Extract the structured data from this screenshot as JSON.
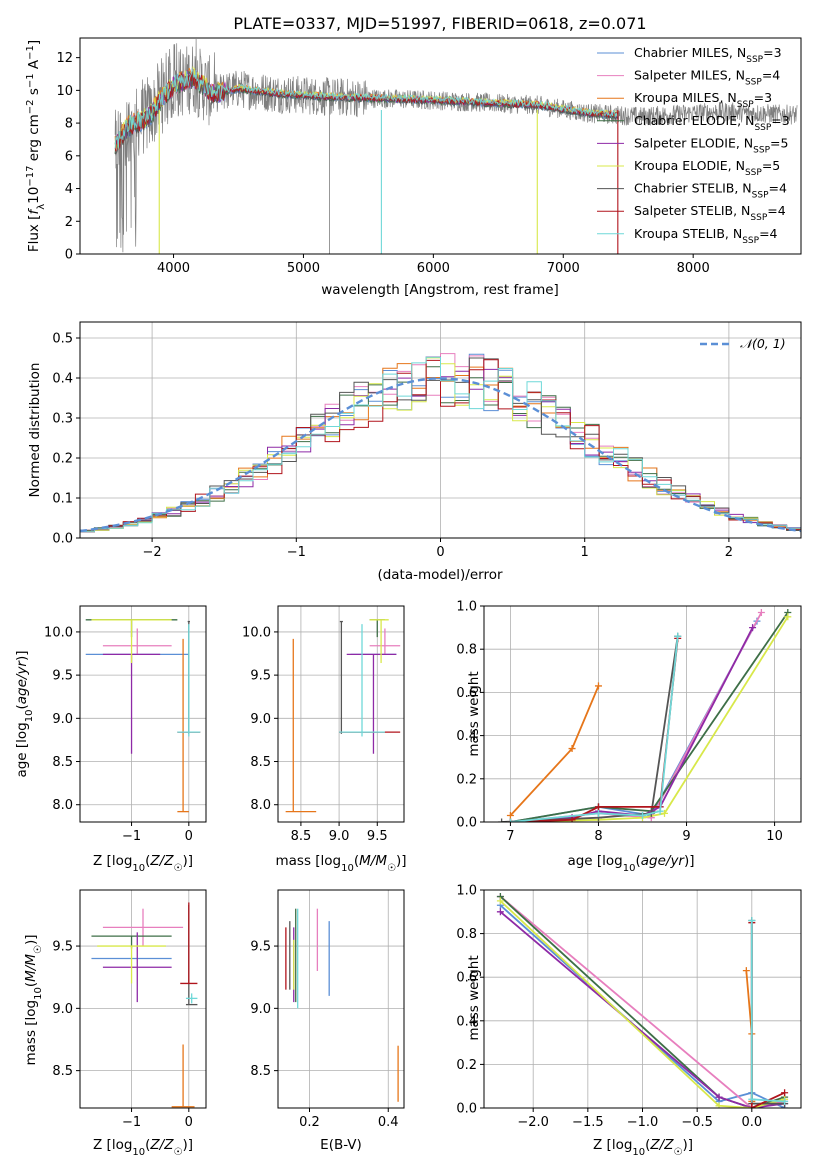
{
  "figure_title": "PLATE=0337, MJD=51997, FIBERID=0618, z=0.071",
  "colors": {
    "Chabrier MILES": "#5b8fd6",
    "Salpeter MILES": "#e77fbe",
    "Kroupa MILES": "#e6761a",
    "Chabrier ELODIE": "#3e6f47",
    "Salpeter ELODIE": "#8e2aa6",
    "Kroupa ELODIE": "#d8e84a",
    "Chabrier STELIB": "#555555",
    "Salpeter STELIB": "#b0141c",
    "Kroupa STELIB": "#6fd8d8",
    "data": "#7f7f7f",
    "normal": "#5b8fd6",
    "grid": "#b0b0b0"
  },
  "chart_data": [
    {
      "id": "spectrum",
      "type": "line",
      "xlabel": "wavelength [Angstrom, rest frame]",
      "ylabel": "Flux [f_λ 10^-17 erg cm^-2 s^-1 A^-1]",
      "xlim": [
        3280,
        8830
      ],
      "ylim": [
        0,
        13.2
      ],
      "xticks": [
        4000,
        5000,
        6000,
        7000,
        8000
      ],
      "yticks": [
        0,
        2,
        4,
        6,
        8,
        10,
        12
      ],
      "grid": false,
      "legend_position": "top-right",
      "legend": [
        {
          "label": "Chabrier MILES, N",
          "sub": "SSP",
          "suffix": "=3"
        },
        {
          "label": "Salpeter MILES, N",
          "sub": "SSP",
          "suffix": "=4"
        },
        {
          "label": "Kroupa MILES, N",
          "sub": "SSP",
          "suffix": "=3"
        },
        {
          "label": "Chabrier ELODIE, N",
          "sub": "SSP",
          "suffix": "=3"
        },
        {
          "label": "Salpeter ELODIE, N",
          "sub": "SSP",
          "suffix": "=5"
        },
        {
          "label": "Kroupa ELODIE, N",
          "sub": "SSP",
          "suffix": "=5"
        },
        {
          "label": "Chabrier STELIB, N",
          "sub": "SSP",
          "suffix": "=4"
        },
        {
          "label": "Salpeter STELIB, N",
          "sub": "SSP",
          "suffix": "=4"
        },
        {
          "label": "Kroupa STELIB, N",
          "sub": "SSP",
          "suffix": "=4"
        }
      ],
      "model_wavelength_range": [
        3550,
        7420
      ],
      "data_wavelength_range": [
        3550,
        8800
      ],
      "continuum_anchor_points": [
        [
          3550,
          6.6
        ],
        [
          3650,
          7.8
        ],
        [
          3800,
          8.3
        ],
        [
          3900,
          9.4
        ],
        [
          4000,
          10.3
        ],
        [
          4150,
          10.8
        ],
        [
          4300,
          9.8
        ],
        [
          4500,
          10.1
        ],
        [
          4800,
          9.8
        ],
        [
          5200,
          9.6
        ],
        [
          5600,
          9.5
        ],
        [
          6000,
          9.4
        ],
        [
          6500,
          9.2
        ],
        [
          6800,
          9.1
        ],
        [
          7200,
          8.6
        ],
        [
          7600,
          8.4
        ],
        [
          8200,
          8.7
        ],
        [
          8800,
          8.5
        ]
      ],
      "notable_dips": [
        [
          3890,
          0
        ],
        [
          5200,
          0
        ],
        [
          5600,
          0
        ],
        [
          6800,
          0
        ],
        [
          7420,
          0
        ]
      ]
    },
    {
      "id": "residuals",
      "type": "histogram",
      "xlabel": "(data-model)/error",
      "ylabel": "Normed distribution",
      "xlim": [
        -2.5,
        2.5
      ],
      "ylim": [
        0,
        0.54
      ],
      "xticks": [
        -2,
        -1,
        0,
        1,
        2
      ],
      "yticks": [
        0.0,
        0.1,
        0.2,
        0.3,
        0.4,
        0.5
      ],
      "grid": true,
      "legend_position": "top-right",
      "legend": [
        {
          "label": "𝒩(0, 1)",
          "style": "dashed"
        }
      ],
      "bin_width": 0.1,
      "note": "nine step histograms of normalized residuals, one per model, approximately following a unit normal curve"
    },
    {
      "id": "age_vs_Z",
      "type": "errorbar",
      "xlabel": "Z [log10(Z/Z☉)]",
      "ylabel": "age  [log10(age/yr)]",
      "xlim": [
        -1.9,
        0.3
      ],
      "ylim": [
        7.8,
        10.3
      ],
      "xticks": [
        -1,
        0
      ],
      "yticks": [
        8.0,
        8.5,
        9.0,
        9.5,
        10.0
      ],
      "grid": true,
      "points": [
        {
          "model": "Chabrier MILES",
          "x": -0.9,
          "y": 9.74,
          "x_err": [
            0.9,
            0.9
          ],
          "y_err": [
            0,
            0
          ]
        },
        {
          "model": "Salpeter MILES",
          "x": -0.9,
          "y": 9.84,
          "x_err": [
            0.6,
            0.6
          ],
          "y_err": [
            0.1,
            0.2
          ]
        },
        {
          "model": "Kroupa MILES",
          "x": -0.1,
          "y": 7.92,
          "x_err": [
            0.1,
            0.1
          ],
          "y_err": [
            0,
            2.0
          ]
        },
        {
          "model": "Chabrier ELODIE",
          "x": -1.0,
          "y": 10.14,
          "x_err": [
            0.8,
            0.8
          ],
          "y_err": [
            0.2,
            0
          ]
        },
        {
          "model": "Salpeter ELODIE",
          "x": -1.0,
          "y": 9.74,
          "x_err": [
            0.5,
            0.5
          ],
          "y_err": [
            1.15,
            0
          ]
        },
        {
          "model": "Kroupa ELODIE",
          "x": -1.0,
          "y": 10.14,
          "x_err": [
            0.7,
            0.7
          ],
          "y_err": [
            0.5,
            0
          ]
        },
        {
          "model": "Chabrier STELIB",
          "x": 0.0,
          "y": 10.12,
          "x_err": [
            0.02,
            0.02
          ],
          "y_err": [
            1.3,
            0
          ]
        },
        {
          "model": "Salpeter STELIB",
          "x": 0.0,
          "y": 8.84,
          "x_err": [
            0.2,
            0.2
          ],
          "y_err": [
            0,
            0
          ]
        },
        {
          "model": "Kroupa STELIB",
          "x": 0.0,
          "y": 8.84,
          "x_err": [
            0.2,
            0.2
          ],
          "y_err": [
            0.05,
            1.25
          ]
        }
      ]
    },
    {
      "id": "age_vs_mass",
      "type": "errorbar",
      "xlabel": "mass [log10(M/M☉)]",
      "ylabel": "",
      "xlim": [
        8.2,
        9.85
      ],
      "ylim": [
        7.8,
        10.3
      ],
      "xticks": [
        8.5,
        9.0,
        9.5
      ],
      "yticks": [
        8.0,
        8.5,
        9.0,
        9.5,
        10.0
      ],
      "grid": true,
      "points": [
        {
          "model": "Chabrier MILES",
          "x": 9.45,
          "y": 9.74,
          "x_err": [
            0.3,
            0.3
          ],
          "y_err": [
            0,
            0
          ]
        },
        {
          "model": "Salpeter MILES",
          "x": 9.6,
          "y": 9.84,
          "x_err": [
            0.2,
            0.2
          ],
          "y_err": [
            0.1,
            0.2
          ]
        },
        {
          "model": "Kroupa MILES",
          "x": 8.4,
          "y": 7.92,
          "x_err": [
            0.1,
            0.3
          ],
          "y_err": [
            0,
            2.0
          ]
        },
        {
          "model": "Chabrier ELODIE",
          "x": 9.5,
          "y": 10.14,
          "x_err": [
            0.1,
            0.1
          ],
          "y_err": [
            0.2,
            0
          ]
        },
        {
          "model": "Salpeter ELODIE",
          "x": 9.45,
          "y": 9.74,
          "x_err": [
            0.35,
            0.3
          ],
          "y_err": [
            1.15,
            0
          ]
        },
        {
          "model": "Kroupa ELODIE",
          "x": 9.55,
          "y": 10.14,
          "x_err": [
            0.15,
            0.1
          ],
          "y_err": [
            0.5,
            0
          ]
        },
        {
          "model": "Chabrier STELIB",
          "x": 9.03,
          "y": 10.12,
          "x_err": [
            0.02,
            0.02
          ],
          "y_err": [
            1.3,
            0
          ]
        },
        {
          "model": "Salpeter STELIB",
          "x": 9.4,
          "y": 8.84,
          "x_err": [
            0.4,
            0.4
          ],
          "y_err": [
            0,
            0
          ]
        },
        {
          "model": "Kroupa STELIB",
          "x": 9.3,
          "y": 8.84,
          "x_err": [
            0.3,
            0.3
          ],
          "y_err": [
            0.05,
            1.25
          ]
        }
      ]
    },
    {
      "id": "weight_vs_age",
      "type": "line",
      "xlabel": "age  [log10(age/yr)]",
      "ylabel": "mass weight",
      "xlim": [
        6.7,
        10.3
      ],
      "ylim": [
        0,
        1.0
      ],
      "xticks": [
        7,
        8,
        9,
        10
      ],
      "yticks": [
        0.0,
        0.2,
        0.4,
        0.6,
        0.8,
        1.0
      ],
      "grid": true,
      "series": [
        {
          "model": "Chabrier MILES",
          "x": [
            7.0,
            8.0,
            8.6,
            9.8
          ],
          "y": [
            0.0,
            0.07,
            0.03,
            0.93
          ]
        },
        {
          "model": "Salpeter MILES",
          "x": [
            7.0,
            8.0,
            8.6,
            9.85
          ],
          "y": [
            0.0,
            0.04,
            0.02,
            0.97
          ]
        },
        {
          "model": "Kroupa MILES",
          "x": [
            7.0,
            7.7,
            8.0
          ],
          "y": [
            0.03,
            0.34,
            0.63
          ]
        },
        {
          "model": "Chabrier ELODIE",
          "x": [
            7.0,
            8.0,
            8.6,
            10.15
          ],
          "y": [
            0.0,
            0.07,
            0.05,
            0.97
          ]
        },
        {
          "model": "Salpeter ELODIE",
          "x": [
            7.0,
            7.7,
            8.0,
            8.5,
            8.7,
            9.75
          ],
          "y": [
            0.0,
            0.02,
            0.05,
            0.03,
            0.07,
            0.9
          ]
        },
        {
          "model": "Kroupa ELODIE",
          "x": [
            7.0,
            8.0,
            8.5,
            8.75,
            10.15
          ],
          "y": [
            0.0,
            0.01,
            0.02,
            0.04,
            0.95
          ]
        },
        {
          "model": "Chabrier STELIB",
          "x": [
            6.9,
            8.0,
            8.6,
            8.9
          ],
          "y": [
            0.0,
            0.02,
            0.04,
            0.86
          ]
        },
        {
          "model": "Salpeter STELIB",
          "x": [
            7.0,
            7.7,
            8.0,
            8.7,
            8.9
          ],
          "y": [
            0.0,
            0.01,
            0.07,
            0.07,
            0.85
          ]
        },
        {
          "model": "Kroupa STELIB",
          "x": [
            7.0,
            8.0,
            8.5,
            8.7,
            8.9
          ],
          "y": [
            0.0,
            0.04,
            0.03,
            0.05,
            0.86
          ]
        }
      ]
    },
    {
      "id": "mass_vs_Z",
      "type": "errorbar",
      "xlabel": "Z [log10(Z/Z☉)]",
      "ylabel": "mass [log10(M/M☉)]",
      "xlim": [
        -1.9,
        0.3
      ],
      "ylim": [
        8.2,
        9.95
      ],
      "xticks": [
        -1,
        0
      ],
      "yticks": [
        8.5,
        9.0,
        9.5
      ],
      "grid": true,
      "points": [
        {
          "model": "Chabrier MILES",
          "x": -1.0,
          "y": 9.4,
          "x_err": [
            0.7,
            0.7
          ],
          "y_err": [
            0,
            0
          ]
        },
        {
          "model": "Salpeter MILES",
          "x": -0.8,
          "y": 9.65,
          "x_err": [
            0.7,
            0.7
          ],
          "y_err": [
            0.15,
            0.15
          ]
        },
        {
          "model": "Kroupa MILES",
          "x": -0.1,
          "y": 8.21,
          "x_err": [
            0.2,
            0.2
          ],
          "y_err": [
            0,
            0.5
          ]
        },
        {
          "model": "Chabrier ELODIE",
          "x": -1.0,
          "y": 9.58,
          "x_err": [
            0.7,
            0.7
          ],
          "y_err": [
            0.1,
            0
          ]
        },
        {
          "model": "Salpeter ELODIE",
          "x": -0.9,
          "y": 9.33,
          "x_err": [
            0.6,
            0.6
          ],
          "y_err": [
            0.28,
            0.28
          ]
        },
        {
          "model": "Kroupa ELODIE",
          "x": -1.0,
          "y": 9.5,
          "x_err": [
            0.6,
            0.6
          ],
          "y_err": [
            0.3,
            0
          ]
        },
        {
          "model": "Chabrier STELIB",
          "x": 0.0,
          "y": 9.03,
          "x_err": [
            0.05,
            0.15
          ],
          "y_err": [
            0,
            0.8
          ]
        },
        {
          "model": "Salpeter STELIB",
          "x": 0.0,
          "y": 9.2,
          "x_err": [
            0.15,
            0.15
          ],
          "y_err": [
            0,
            0.65
          ]
        },
        {
          "model": "Kroupa STELIB",
          "x": 0.05,
          "y": 9.08,
          "x_err": [
            0.1,
            0.1
          ],
          "y_err": [
            0.04,
            0.04
          ]
        }
      ]
    },
    {
      "id": "mass_vs_ebv",
      "type": "errorbar",
      "xlabel": "E(B-V)",
      "ylabel": "",
      "xlim": [
        0.12,
        0.44
      ],
      "ylim": [
        8.2,
        9.95
      ],
      "xticks": [
        0.2,
        0.4
      ],
      "yticks": [
        8.5,
        9.0,
        9.5
      ],
      "grid": true,
      "points": [
        {
          "model": "Chabrier MILES",
          "x": 0.25,
          "y": 9.4,
          "x_err": [
            0,
            0
          ],
          "y_err": [
            0.3,
            0.3
          ]
        },
        {
          "model": "Salpeter MILES",
          "x": 0.22,
          "y": 9.55,
          "x_err": [
            0,
            0
          ],
          "y_err": [
            0.25,
            0.25
          ]
        },
        {
          "model": "Kroupa MILES",
          "x": 0.425,
          "y": 8.5,
          "x_err": [
            0,
            0
          ],
          "y_err": [
            0.25,
            0.2
          ]
        },
        {
          "model": "Chabrier ELODIE",
          "x": 0.165,
          "y": 9.35,
          "x_err": [
            0,
            0
          ],
          "y_err": [
            0.3,
            0.45
          ]
        },
        {
          "model": "Salpeter ELODIE",
          "x": 0.16,
          "y": 9.35,
          "x_err": [
            0,
            0
          ],
          "y_err": [
            0.3,
            0.3
          ]
        },
        {
          "model": "Kroupa ELODIE",
          "x": 0.16,
          "y": 9.35,
          "x_err": [
            0,
            0
          ],
          "y_err": [
            0.2,
            0.2
          ]
        },
        {
          "model": "Chabrier STELIB",
          "x": 0.15,
          "y": 9.4,
          "x_err": [
            0,
            0
          ],
          "y_err": [
            0.25,
            0.3
          ]
        },
        {
          "model": "Salpeter STELIB",
          "x": 0.14,
          "y": 9.4,
          "x_err": [
            0,
            0
          ],
          "y_err": [
            0.25,
            0.25
          ]
        },
        {
          "model": "Kroupa STELIB",
          "x": 0.17,
          "y": 9.4,
          "x_err": [
            0,
            0
          ],
          "y_err": [
            0.4,
            0.4
          ]
        }
      ]
    },
    {
      "id": "weight_vs_Z",
      "type": "line",
      "xlabel": "Z [log10(Z/Z☉)]",
      "ylabel": "mass weight",
      "xlim": [
        -2.45,
        0.45
      ],
      "ylim": [
        0,
        1.0
      ],
      "xticks": [
        -2.0,
        -1.5,
        -1.0,
        -0.5,
        0.0
      ],
      "yticks": [
        0.0,
        0.2,
        0.4,
        0.6,
        0.8,
        1.0
      ],
      "grid": true,
      "series": [
        {
          "model": "Chabrier MILES",
          "x": [
            -2.3,
            -0.3,
            0.0,
            0.3
          ],
          "y": [
            0.93,
            0.03,
            0.07,
            0.0
          ]
        },
        {
          "model": "Salpeter MILES",
          "x": [
            -2.3,
            0.0,
            0.3
          ],
          "y": [
            0.97,
            0.0,
            0.03
          ]
        },
        {
          "model": "Kroupa MILES",
          "x": [
            -0.05,
            0.0,
            0.0
          ],
          "y": [
            0.63,
            0.34,
            0.03
          ]
        },
        {
          "model": "Chabrier ELODIE",
          "x": [
            -2.3,
            -0.3,
            0.0,
            0.3
          ],
          "y": [
            0.97,
            0.05,
            0.0,
            0.05
          ]
        },
        {
          "model": "Salpeter ELODIE",
          "x": [
            -2.3,
            -0.3,
            0.0,
            0.3
          ],
          "y": [
            0.9,
            0.05,
            0.0,
            0.02
          ]
        },
        {
          "model": "Kroupa ELODIE",
          "x": [
            -2.3,
            -0.3,
            0.0,
            0.3
          ],
          "y": [
            0.95,
            0.01,
            0.0,
            0.04
          ]
        },
        {
          "model": "Chabrier STELIB",
          "x": [
            0.0,
            0.0,
            0.3
          ],
          "y": [
            0.86,
            0.02,
            0.02
          ]
        },
        {
          "model": "Salpeter STELIB",
          "x": [
            0.0,
            0.0,
            0.3
          ],
          "y": [
            0.85,
            0.0,
            0.07
          ]
        },
        {
          "model": "Kroupa STELIB",
          "x": [
            0.0,
            0.0,
            0.3
          ],
          "y": [
            0.86,
            0.04,
            0.03
          ]
        }
      ]
    }
  ]
}
